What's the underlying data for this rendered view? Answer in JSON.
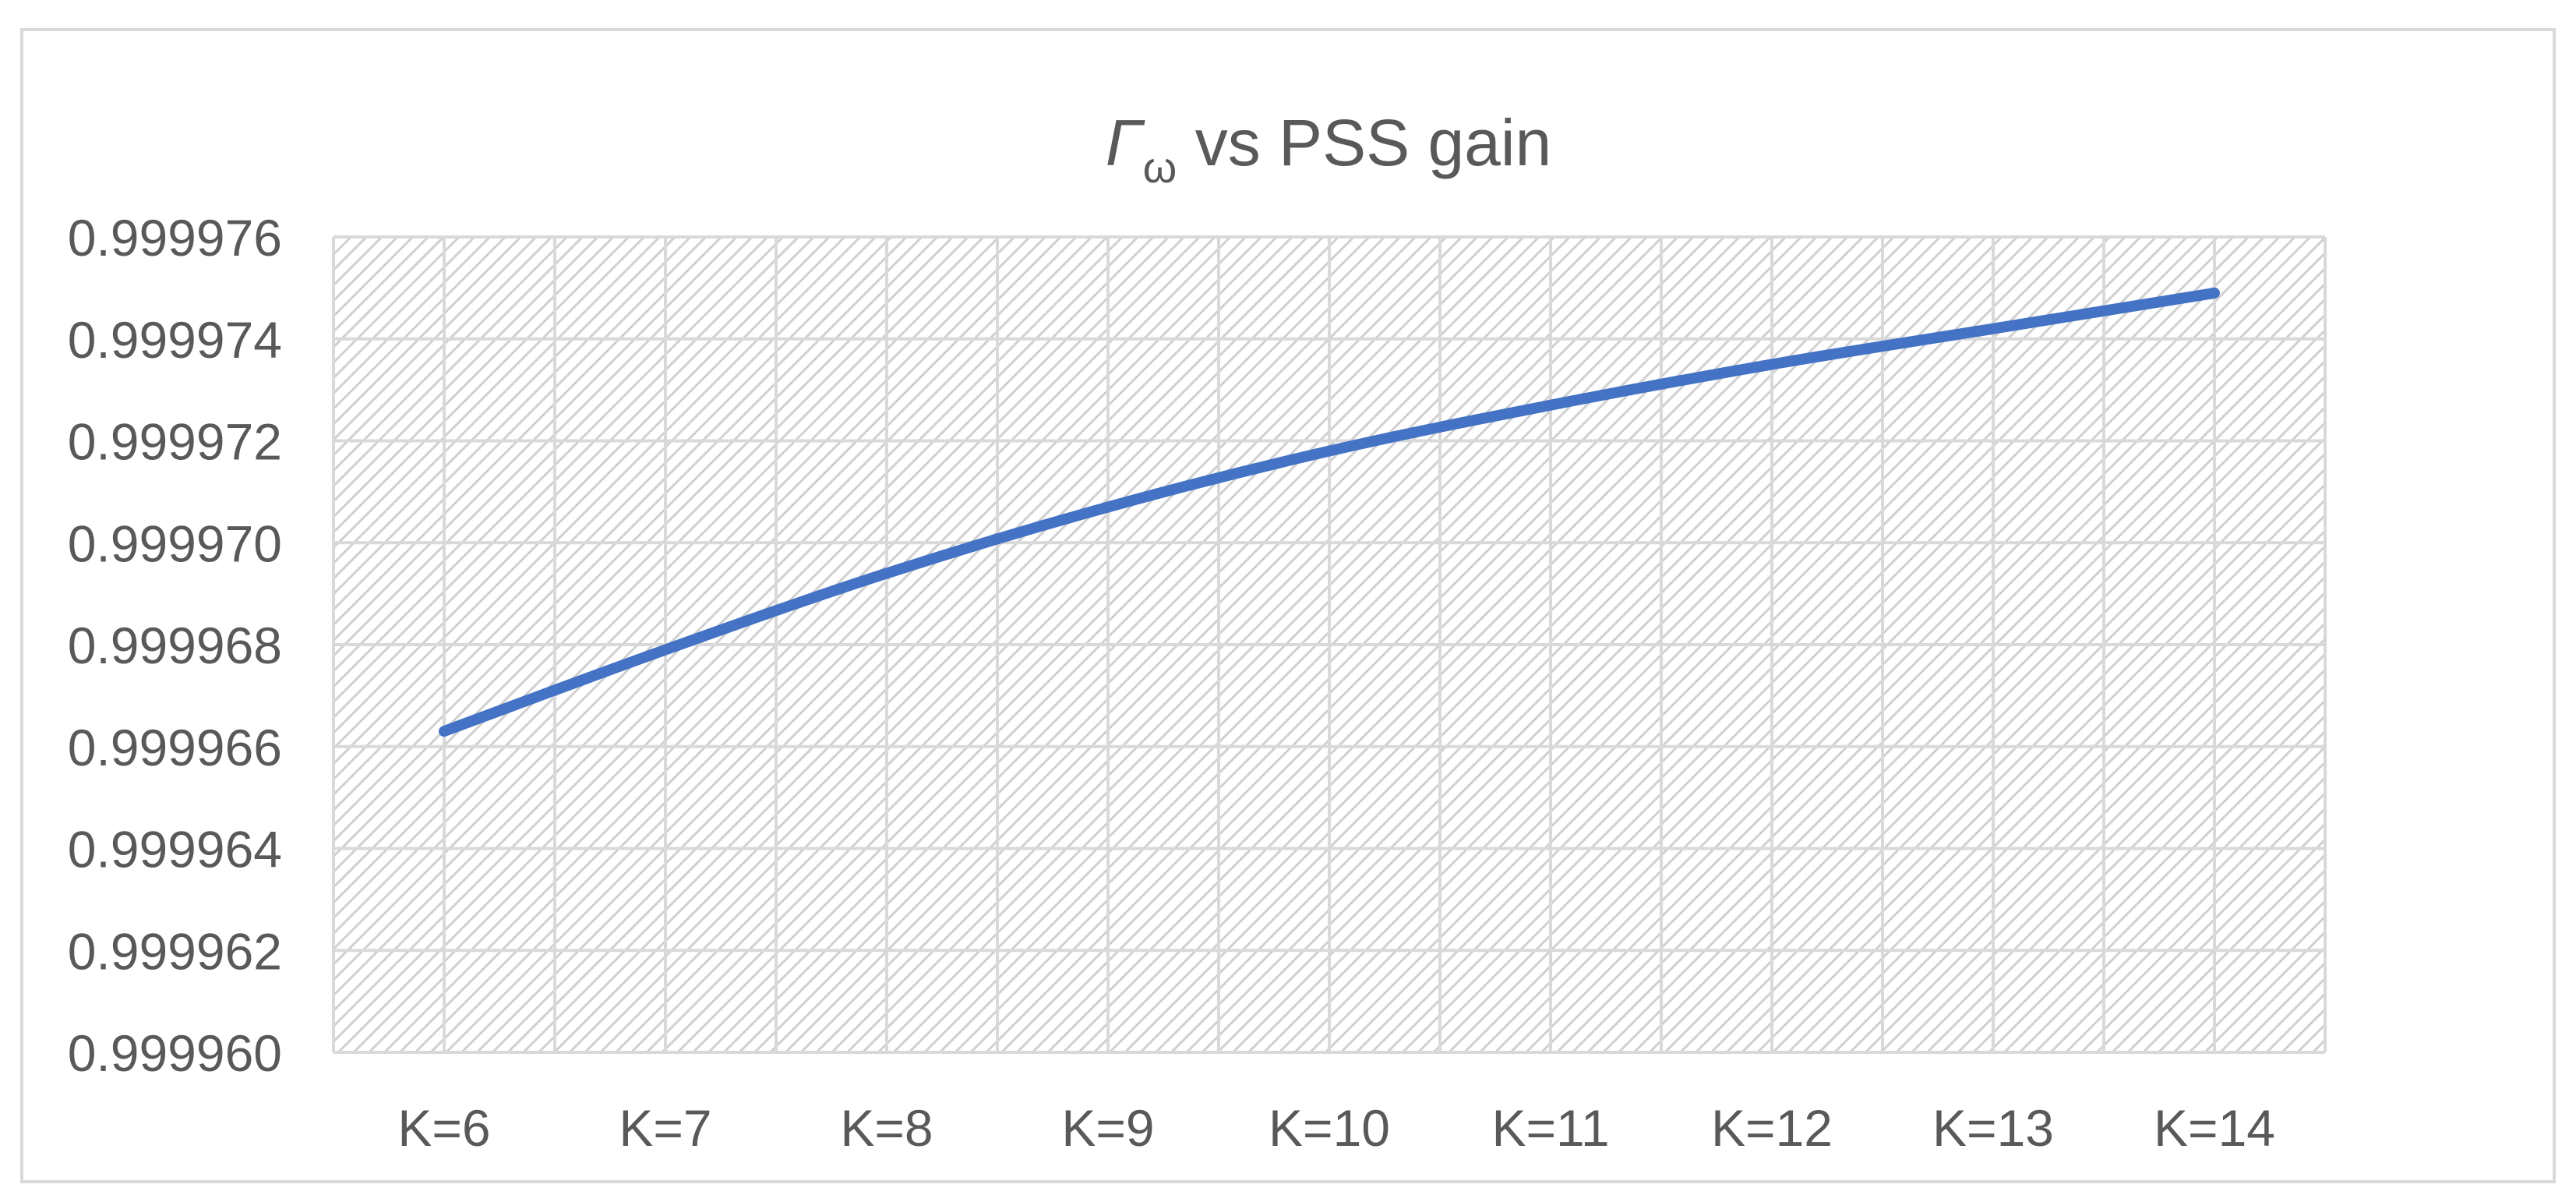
{
  "chart_data": {
    "type": "line",
    "title": {
      "symbol": "Γ",
      "subscript": "ω",
      "text": " vs PSS gain"
    },
    "categories": [
      "K=6",
      "K=7",
      "K=8",
      "K=9",
      "K=10",
      "K=11",
      "K=12",
      "K=13",
      "K=14"
    ],
    "series": [
      {
        "values": [
          0.9999663,
          0.9999679,
          0.9999694,
          0.9999707,
          0.9999718,
          0.9999727,
          0.9999735,
          0.9999742,
          0.9999749
        ]
      }
    ],
    "yticks": [
      "0.999960",
      "0.999962",
      "0.999964",
      "0.999966",
      "0.999968",
      "0.999970",
      "0.999972",
      "0.999974",
      "0.999976"
    ],
    "ylim": [
      0.99996,
      0.999976
    ],
    "xlabel": "",
    "ylabel": "",
    "grid": true,
    "legend": "none",
    "line_color": "#4472C4",
    "grid_color": "#D9D9D9",
    "hatch_color": "#D0D0D0",
    "text_color": "#595959",
    "border_color": "#D9D9D9"
  }
}
